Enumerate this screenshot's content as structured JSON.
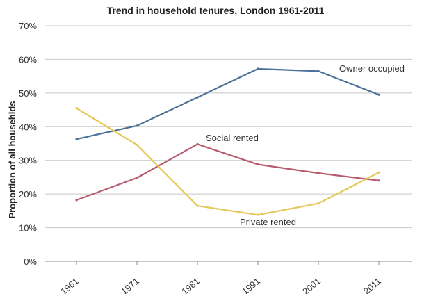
{
  "chart_data": {
    "type": "line",
    "title": "Trend in household tenures, London 1961-2011",
    "xlabel": "",
    "ylabel": "Proportion of all househlds",
    "categories": [
      "1961",
      "1971",
      "1981",
      "1991",
      "2001",
      "2011"
    ],
    "ylim": [
      0,
      70
    ],
    "yticks": [
      "0%",
      "10%",
      "20%",
      "30%",
      "40%",
      "50%",
      "60%",
      "70%"
    ],
    "grid": true,
    "series": [
      {
        "name": "Owner occupied",
        "color": "#4a7298",
        "values": [
          36.3,
          40.3,
          48.7,
          57.2,
          56.5,
          49.5
        ]
      },
      {
        "name": "Social rented",
        "color": "#b85b6e",
        "values": [
          18.2,
          24.8,
          34.8,
          28.8,
          26.2,
          24.0
        ]
      },
      {
        "name": "Private rented",
        "color": "#e6c75a",
        "values": [
          45.5,
          34.6,
          16.5,
          13.8,
          17.2,
          26.4
        ]
      }
    ]
  }
}
